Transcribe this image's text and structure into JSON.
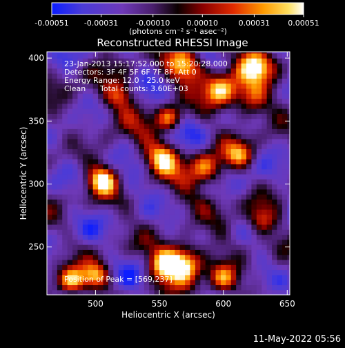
{
  "chart_data": {
    "type": "heatmap",
    "title": "Reconstructed RHESSI Image",
    "xlabel": "Heliocentric X (arcsec)",
    "ylabel": "Heliocentric Y (arcsec)",
    "xlim": [
      462,
      652
    ],
    "ylim": [
      212,
      405
    ],
    "xticks": [
      500,
      550,
      600,
      650
    ],
    "yticks": [
      250,
      300,
      350,
      400
    ],
    "x_tick_labels": [
      "500",
      "550",
      "600",
      "650"
    ],
    "y_tick_labels": [
      "250",
      "300",
      "350",
      "400"
    ],
    "colorbar": {
      "range": [
        -0.00051,
        0.00051
      ],
      "ticks": [
        -0.00051,
        -0.00031,
        -0.0001,
        0.0001,
        0.00031,
        0.00051
      ],
      "tick_labels": [
        "-0.00051",
        "-0.00031",
        "-0.00010",
        "0.00010",
        "0.00031",
        "0.00051"
      ],
      "units_label": "(photons cm⁻² s⁻¹ asec⁻²)"
    },
    "annotations": {
      "time_range": "23-Jan-2013 15:17:52.000 to 15:20:28.000",
      "detectors": "Detectors: 3F 4F 5F 6F 7F 8F, Att 0",
      "energy_range": "Energy Range: 12.0 - 25.0 keV",
      "method": "Clean",
      "total_counts": "Total counts: 3.60E+03",
      "peak": "Position of Peak = [569,237]"
    },
    "peak": {
      "x": 569,
      "y": 237
    },
    "bright_sources": [
      {
        "x": 569,
        "y": 237,
        "intensity": 1.0,
        "radius": 10
      },
      {
        "x": 553,
        "y": 236,
        "intensity": 0.75,
        "radius": 9
      },
      {
        "x": 505,
        "y": 303,
        "intensity": 0.85,
        "radius": 8
      },
      {
        "x": 570,
        "y": 395,
        "intensity": 0.8,
        "radius": 10
      },
      {
        "x": 625,
        "y": 395,
        "intensity": 0.8,
        "radius": 10
      },
      {
        "x": 598,
        "y": 376,
        "intensity": 0.75,
        "radius": 10
      },
      {
        "x": 622,
        "y": 368,
        "intensity": 0.65,
        "radius": 10
      },
      {
        "x": 558,
        "y": 352,
        "intensity": 0.6,
        "radius": 7
      },
      {
        "x": 481,
        "y": 223,
        "intensity": 0.75,
        "radius": 8
      },
      {
        "x": 500,
        "y": 227,
        "intensity": 0.6,
        "radius": 7
      },
      {
        "x": 586,
        "y": 312,
        "intensity": 0.65,
        "radius": 9
      },
      {
        "x": 612,
        "y": 324,
        "intensity": 0.55,
        "radius": 8
      },
      {
        "x": 552,
        "y": 321,
        "intensity": 0.5,
        "radius": 9
      },
      {
        "x": 520,
        "y": 371,
        "intensity": 0.55,
        "radius": 8
      },
      {
        "x": 630,
        "y": 272,
        "intensity": 0.5,
        "radius": 8
      },
      {
        "x": 600,
        "y": 225,
        "intensity": 0.55,
        "radius": 8
      }
    ],
    "grid": false
  },
  "footer": {
    "timestamp": "11-May-2022 05:56"
  }
}
